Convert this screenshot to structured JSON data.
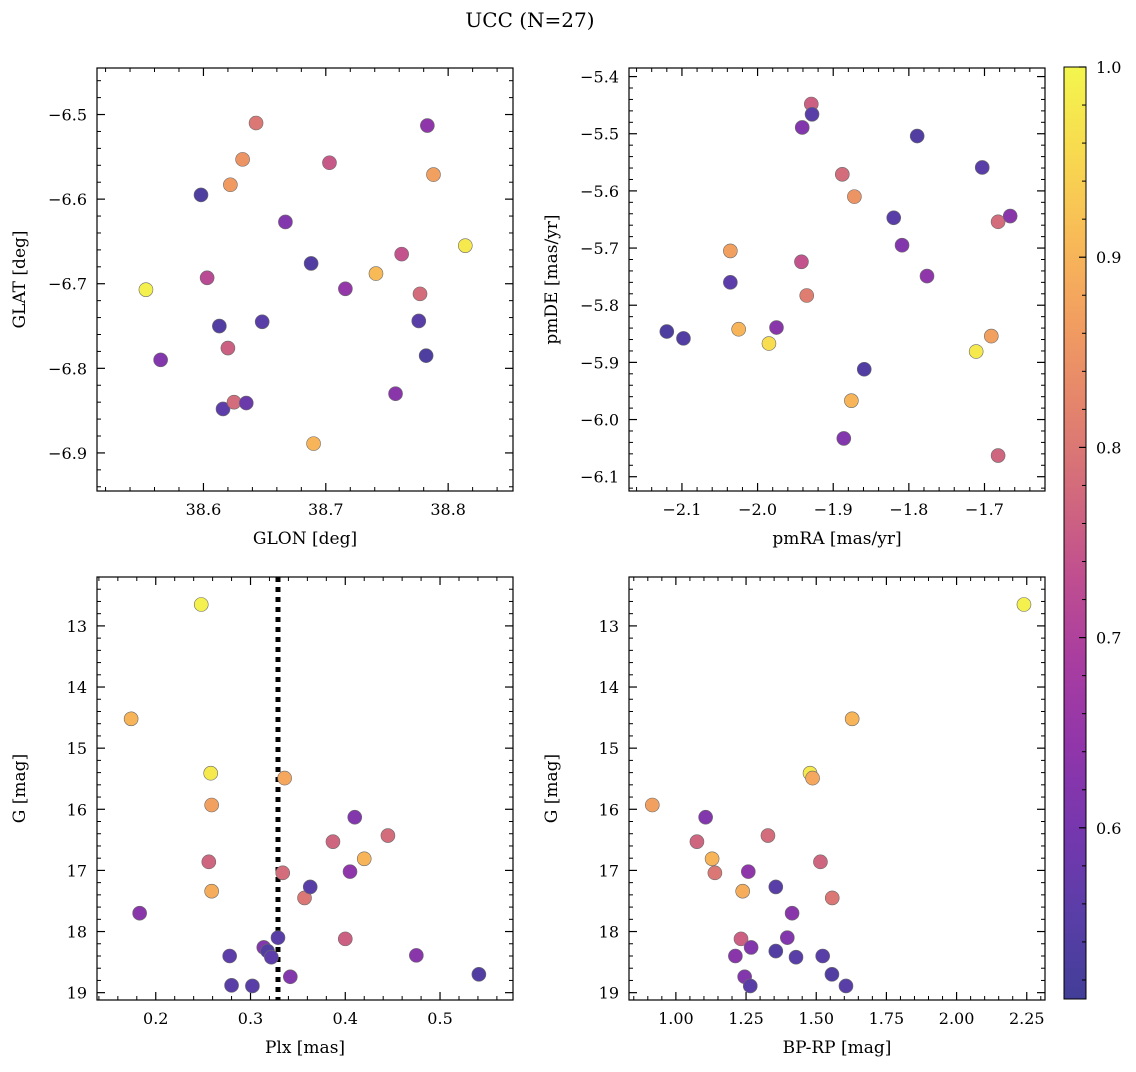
{
  "figure_title": "UCC (N=27)",
  "chart_data": [
    {
      "type": "scatter",
      "xlabel": "GLON [deg]",
      "ylabel": "GLAT [deg]",
      "xlim": [
        38.513,
        38.853
      ],
      "ylim": [
        -6.945,
        -6.445
      ],
      "y_inverted": false,
      "xticks": [
        38.6,
        38.7,
        38.8
      ],
      "xtick_labels": [
        "38.6",
        "38.7",
        "38.8"
      ],
      "yticks": [
        -6.5,
        -6.6,
        -6.7,
        -6.8,
        -6.9
      ],
      "ytick_labels": [
        "−6.5",
        "−6.6",
        "−6.7",
        "−6.8",
        "−6.9"
      ],
      "points": [
        {
          "x": 38.553,
          "y": -6.707,
          "c": 0.99
        },
        {
          "x": 38.565,
          "y": -6.79,
          "c": 0.62
        },
        {
          "x": 38.598,
          "y": -6.595,
          "c": 0.53
        },
        {
          "x": 38.603,
          "y": -6.693,
          "c": 0.72
        },
        {
          "x": 38.613,
          "y": -6.75,
          "c": 0.54
        },
        {
          "x": 38.616,
          "y": -6.848,
          "c": 0.56
        },
        {
          "x": 38.62,
          "y": -6.776,
          "c": 0.76
        },
        {
          "x": 38.622,
          "y": -6.583,
          "c": 0.86
        },
        {
          "x": 38.625,
          "y": -6.84,
          "c": 0.78
        },
        {
          "x": 38.632,
          "y": -6.553,
          "c": 0.85
        },
        {
          "x": 38.635,
          "y": -6.841,
          "c": 0.58
        },
        {
          "x": 38.643,
          "y": -6.51,
          "c": 0.8
        },
        {
          "x": 38.648,
          "y": -6.745,
          "c": 0.55
        },
        {
          "x": 38.667,
          "y": -6.627,
          "c": 0.62
        },
        {
          "x": 38.688,
          "y": -6.676,
          "c": 0.54
        },
        {
          "x": 38.69,
          "y": -6.889,
          "c": 0.9
        },
        {
          "x": 38.703,
          "y": -6.557,
          "c": 0.75
        },
        {
          "x": 38.716,
          "y": -6.706,
          "c": 0.65
        },
        {
          "x": 38.741,
          "y": -6.688,
          "c": 0.91
        },
        {
          "x": 38.757,
          "y": -6.83,
          "c": 0.63
        },
        {
          "x": 38.762,
          "y": -6.665,
          "c": 0.74
        },
        {
          "x": 38.776,
          "y": -6.744,
          "c": 0.55
        },
        {
          "x": 38.777,
          "y": -6.712,
          "c": 0.78
        },
        {
          "x": 38.782,
          "y": -6.785,
          "c": 0.53
        },
        {
          "x": 38.783,
          "y": -6.513,
          "c": 0.64
        },
        {
          "x": 38.788,
          "y": -6.571,
          "c": 0.87
        },
        {
          "x": 38.814,
          "y": -6.655,
          "c": 0.98
        }
      ]
    },
    {
      "type": "scatter",
      "xlabel": "pmRA [mas/yr]",
      "ylabel": "pmDE [mas/yr]",
      "xlim": [
        -2.17,
        -1.62
      ],
      "ylim": [
        -6.125,
        -5.385
      ],
      "y_inverted": false,
      "xticks": [
        -2.1,
        -2.0,
        -1.9,
        -1.8,
        -1.7
      ],
      "xtick_labels": [
        "−2.1",
        "−2.0",
        "−1.9",
        "−1.8",
        "−1.7"
      ],
      "yticks": [
        -5.4,
        -5.5,
        -5.6,
        -5.7,
        -5.8,
        -5.9,
        -6.0,
        -6.1
      ],
      "ytick_labels": [
        "−5.4",
        "−5.5",
        "−5.6",
        "−5.7",
        "−5.8",
        "−5.9",
        "−6.0",
        "−6.1"
      ],
      "points": [
        {
          "x": -2.12,
          "y": -5.846,
          "c": 0.53
        },
        {
          "x": -2.098,
          "y": -5.858,
          "c": 0.54
        },
        {
          "x": -2.036,
          "y": -5.705,
          "c": 0.87
        },
        {
          "x": -2.036,
          "y": -5.76,
          "c": 0.56
        },
        {
          "x": -2.025,
          "y": -5.842,
          "c": 0.9
        },
        {
          "x": -1.985,
          "y": -5.867,
          "c": 0.96
        },
        {
          "x": -1.975,
          "y": -5.839,
          "c": 0.63
        },
        {
          "x": -1.942,
          "y": -5.724,
          "c": 0.74
        },
        {
          "x": -1.941,
          "y": -5.489,
          "c": 0.62
        },
        {
          "x": -1.935,
          "y": -5.783,
          "c": 0.81
        },
        {
          "x": -1.929,
          "y": -5.448,
          "c": 0.76
        },
        {
          "x": -1.928,
          "y": -5.466,
          "c": 0.55
        },
        {
          "x": -1.888,
          "y": -5.571,
          "c": 0.78
        },
        {
          "x": -1.886,
          "y": -6.033,
          "c": 0.62
        },
        {
          "x": -1.876,
          "y": -5.967,
          "c": 0.9
        },
        {
          "x": -1.872,
          "y": -5.61,
          "c": 0.85
        },
        {
          "x": -1.859,
          "y": -5.912,
          "c": 0.54
        },
        {
          "x": -1.82,
          "y": -5.647,
          "c": 0.55
        },
        {
          "x": -1.809,
          "y": -5.695,
          "c": 0.62
        },
        {
          "x": -1.789,
          "y": -5.504,
          "c": 0.54
        },
        {
          "x": -1.776,
          "y": -5.749,
          "c": 0.64
        },
        {
          "x": -1.711,
          "y": -5.881,
          "c": 0.98
        },
        {
          "x": -1.703,
          "y": -5.559,
          "c": 0.55
        },
        {
          "x": -1.691,
          "y": -5.854,
          "c": 0.87
        },
        {
          "x": -1.682,
          "y": -5.654,
          "c": 0.78
        },
        {
          "x": -1.682,
          "y": -6.063,
          "c": 0.77
        },
        {
          "x": -1.666,
          "y": -5.644,
          "c": 0.63
        }
      ]
    },
    {
      "type": "scatter",
      "xlabel": "Plx [mas]",
      "ylabel": "G [mag]",
      "xlim": [
        0.138,
        0.577
      ],
      "ylim": [
        19.12,
        12.2
      ],
      "y_inverted": true,
      "xticks": [
        0.2,
        0.3,
        0.4,
        0.5
      ],
      "xtick_labels": [
        "0.2",
        "0.3",
        "0.4",
        "0.5"
      ],
      "yticks": [
        13,
        14,
        15,
        16,
        17,
        18,
        19
      ],
      "ytick_labels": [
        "13",
        "14",
        "15",
        "16",
        "17",
        "18",
        "19"
      ],
      "vline": {
        "x": 0.329,
        "style": "dotted"
      },
      "points": [
        {
          "x": 0.248,
          "y": 12.65,
          "c": 0.99
        },
        {
          "x": 0.174,
          "y": 14.52,
          "c": 0.9
        },
        {
          "x": 0.258,
          "y": 15.41,
          "c": 0.98
        },
        {
          "x": 0.259,
          "y": 15.93,
          "c": 0.87
        },
        {
          "x": 0.256,
          "y": 16.86,
          "c": 0.77
        },
        {
          "x": 0.259,
          "y": 17.34,
          "c": 0.89
        },
        {
          "x": 0.183,
          "y": 17.7,
          "c": 0.63
        },
        {
          "x": 0.278,
          "y": 18.4,
          "c": 0.56
        },
        {
          "x": 0.28,
          "y": 18.88,
          "c": 0.55
        },
        {
          "x": 0.302,
          "y": 18.89,
          "c": 0.55
        },
        {
          "x": 0.314,
          "y": 18.26,
          "c": 0.62
        },
        {
          "x": 0.318,
          "y": 18.32,
          "c": 0.54
        },
        {
          "x": 0.322,
          "y": 18.42,
          "c": 0.56
        },
        {
          "x": 0.329,
          "y": 18.1,
          "c": 0.55
        },
        {
          "x": 0.336,
          "y": 15.49,
          "c": 0.88
        },
        {
          "x": 0.334,
          "y": 17.04,
          "c": 0.78
        },
        {
          "x": 0.342,
          "y": 18.74,
          "c": 0.62
        },
        {
          "x": 0.357,
          "y": 17.45,
          "c": 0.8
        },
        {
          "x": 0.363,
          "y": 17.27,
          "c": 0.55
        },
        {
          "x": 0.387,
          "y": 16.53,
          "c": 0.77
        },
        {
          "x": 0.4,
          "y": 18.12,
          "c": 0.76
        },
        {
          "x": 0.405,
          "y": 17.02,
          "c": 0.64
        },
        {
          "x": 0.41,
          "y": 16.13,
          "c": 0.62
        },
        {
          "x": 0.42,
          "y": 16.81,
          "c": 0.9
        },
        {
          "x": 0.445,
          "y": 16.43,
          "c": 0.78
        },
        {
          "x": 0.475,
          "y": 18.39,
          "c": 0.63
        },
        {
          "x": 0.541,
          "y": 18.7,
          "c": 0.54
        }
      ]
    },
    {
      "type": "scatter",
      "xlabel": "BP-RP [mag]",
      "ylabel": "G [mag]",
      "xlim": [
        0.833,
        2.315
      ],
      "ylim": [
        19.12,
        12.2
      ],
      "y_inverted": true,
      "xticks": [
        1.0,
        1.25,
        1.5,
        1.75,
        2.0,
        2.25
      ],
      "xtick_labels": [
        "1.00",
        "1.25",
        "1.50",
        "1.75",
        "2.00",
        "2.25"
      ],
      "yticks": [
        13,
        14,
        15,
        16,
        17,
        18,
        19
      ],
      "ytick_labels": [
        "13",
        "14",
        "15",
        "16",
        "17",
        "18",
        "19"
      ],
      "points": [
        {
          "x": 2.24,
          "y": 12.65,
          "c": 0.99
        },
        {
          "x": 1.628,
          "y": 14.52,
          "c": 0.9
        },
        {
          "x": 1.478,
          "y": 15.41,
          "c": 0.98
        },
        {
          "x": 1.487,
          "y": 15.49,
          "c": 0.88
        },
        {
          "x": 0.916,
          "y": 15.93,
          "c": 0.87
        },
        {
          "x": 1.106,
          "y": 16.13,
          "c": 0.62
        },
        {
          "x": 1.075,
          "y": 16.53,
          "c": 0.77
        },
        {
          "x": 1.328,
          "y": 16.43,
          "c": 0.78
        },
        {
          "x": 1.129,
          "y": 16.81,
          "c": 0.9
        },
        {
          "x": 1.515,
          "y": 16.86,
          "c": 0.77
        },
        {
          "x": 1.139,
          "y": 17.04,
          "c": 0.8
        },
        {
          "x": 1.258,
          "y": 17.02,
          "c": 0.64
        },
        {
          "x": 1.238,
          "y": 17.34,
          "c": 0.89
        },
        {
          "x": 1.356,
          "y": 17.27,
          "c": 0.55
        },
        {
          "x": 1.557,
          "y": 17.45,
          "c": 0.8
        },
        {
          "x": 1.414,
          "y": 17.7,
          "c": 0.63
        },
        {
          "x": 1.232,
          "y": 18.12,
          "c": 0.76
        },
        {
          "x": 1.397,
          "y": 18.1,
          "c": 0.62
        },
        {
          "x": 1.268,
          "y": 18.26,
          "c": 0.62
        },
        {
          "x": 1.356,
          "y": 18.32,
          "c": 0.54
        },
        {
          "x": 1.212,
          "y": 18.4,
          "c": 0.63
        },
        {
          "x": 1.428,
          "y": 18.42,
          "c": 0.55
        },
        {
          "x": 1.523,
          "y": 18.4,
          "c": 0.55
        },
        {
          "x": 1.245,
          "y": 18.74,
          "c": 0.62
        },
        {
          "x": 1.556,
          "y": 18.7,
          "c": 0.54
        },
        {
          "x": 1.265,
          "y": 18.89,
          "c": 0.55
        },
        {
          "x": 1.606,
          "y": 18.89,
          "c": 0.55
        }
      ]
    }
  ],
  "colorbar": {
    "colormap": "plasma",
    "range": [
      0.51,
      1.0
    ],
    "ticks": [
      0.6,
      0.7,
      0.8,
      0.9,
      1.0
    ],
    "tick_labels": [
      "0.6",
      "0.7",
      "0.8",
      "0.9",
      "1.0"
    ],
    "colors": [
      "#423e97",
      "#5a3ea8",
      "#7637ae",
      "#9136aa",
      "#a93da0",
      "#c04f8f",
      "#d26a7c",
      "#e4846c",
      "#f29e60",
      "#f8bb57",
      "#f8da4f",
      "#f3f64e"
    ]
  }
}
